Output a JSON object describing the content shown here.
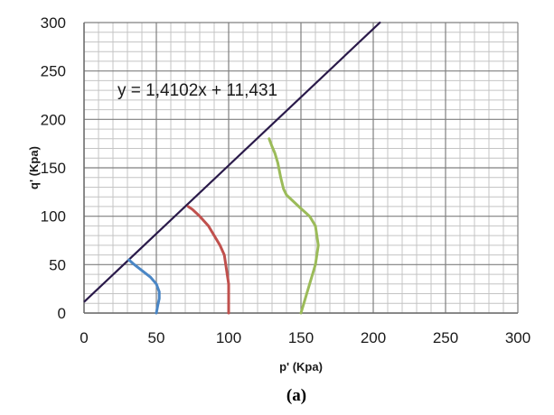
{
  "chart_data": {
    "type": "line",
    "title": "",
    "xlabel": "p' (Kpa)",
    "ylabel": "q' (Kpa)",
    "xlim": [
      0,
      300
    ],
    "ylim": [
      0,
      300
    ],
    "x_ticks": [
      0,
      50,
      100,
      150,
      200,
      250,
      300
    ],
    "y_ticks": [
      0,
      50,
      100,
      150,
      200,
      250,
      300
    ],
    "grid": true,
    "annotation": "y = 1,4102x + 11,431",
    "caption": "(a)",
    "trendline": {
      "slope": 1.4102,
      "intercept": 11.431,
      "x_range": [
        0,
        205
      ],
      "color": "#2a1a4a"
    },
    "series": [
      {
        "color": "#4a86c5",
        "points": [
          [
            50,
            0
          ],
          [
            51,
            8
          ],
          [
            52,
            15
          ],
          [
            52,
            22
          ],
          [
            50,
            30
          ],
          [
            46,
            37
          ],
          [
            40,
            44
          ],
          [
            34,
            51
          ],
          [
            31,
            55
          ]
        ]
      },
      {
        "color": "#c0504d",
        "points": [
          [
            100,
            0
          ],
          [
            100,
            10
          ],
          [
            100,
            20
          ],
          [
            100,
            30
          ],
          [
            99,
            40
          ],
          [
            98,
            50
          ],
          [
            97,
            60
          ],
          [
            94,
            70
          ],
          [
            90,
            80
          ],
          [
            86,
            90
          ],
          [
            80,
            100
          ],
          [
            75,
            107
          ],
          [
            72,
            110
          ]
        ]
      },
      {
        "color": "#9bbb59",
        "points": [
          [
            150,
            0
          ],
          [
            152,
            10
          ],
          [
            154,
            20
          ],
          [
            156,
            30
          ],
          [
            158,
            40
          ],
          [
            160,
            50
          ],
          [
            161,
            60
          ],
          [
            162,
            70
          ],
          [
            161,
            80
          ],
          [
            160,
            90
          ],
          [
            156,
            100
          ],
          [
            150,
            108
          ],
          [
            145,
            115
          ],
          [
            140,
            122
          ],
          [
            138,
            128
          ],
          [
            136,
            140
          ],
          [
            134,
            155
          ],
          [
            132,
            165
          ],
          [
            130,
            172
          ],
          [
            128,
            180
          ]
        ]
      }
    ]
  }
}
